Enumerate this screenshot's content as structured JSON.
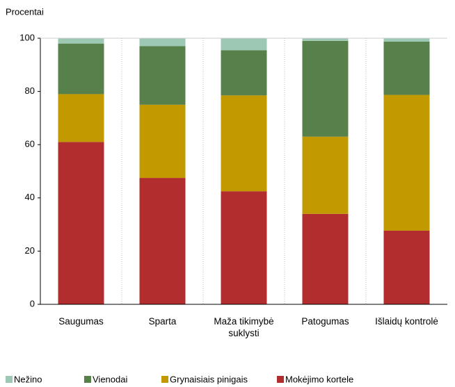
{
  "chart_data": {
    "type": "stacked_bar",
    "y_label": "Procentai",
    "categories": [
      "Saugumas",
      "Sparta",
      "Maža tikimybė suklysti",
      "Patogumas",
      "Išlaidų kontrolė"
    ],
    "series": [
      {
        "name": "Nežino",
        "color": "#9dc9b4",
        "values": [
          2,
          3,
          4.5,
          1,
          1.3
        ]
      },
      {
        "name": "Vienodai",
        "color": "#57804a",
        "values": [
          19,
          22,
          17,
          36,
          20
        ]
      },
      {
        "name": "Grynaisiais pinigais",
        "color": "#c29a00",
        "values": [
          18,
          27.5,
          36,
          29,
          51
        ]
      },
      {
        "name": "Mokėjimo kortele",
        "color": "#b22d2d",
        "values": [
          61,
          47.5,
          42.5,
          34,
          27.7
        ]
      }
    ],
    "ylim": [
      0,
      100
    ],
    "yticks": [
      0,
      20,
      40,
      60,
      80,
      100
    ],
    "grid": false
  }
}
